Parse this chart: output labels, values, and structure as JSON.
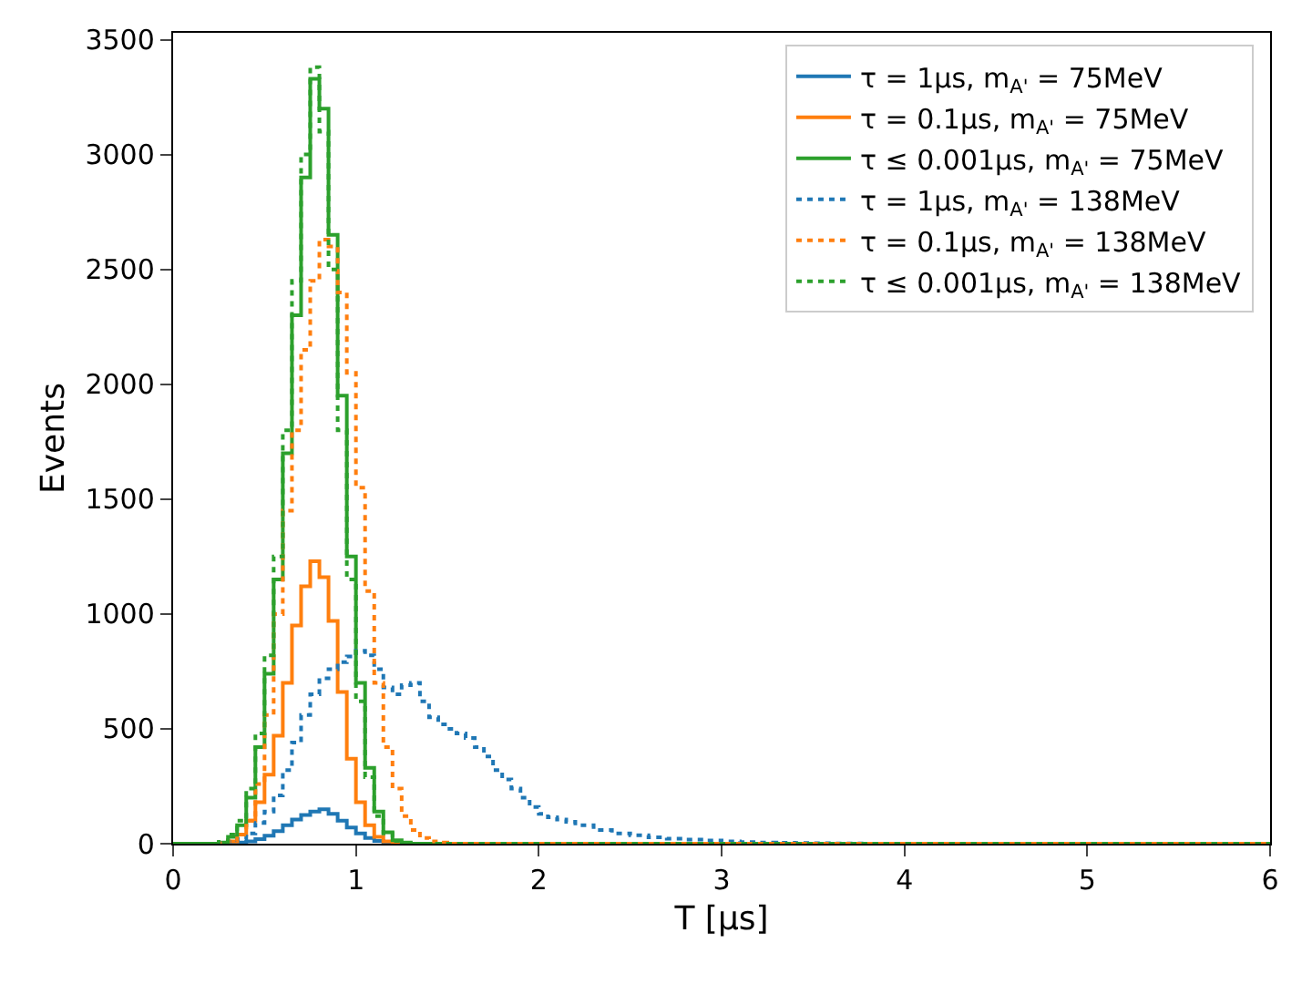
{
  "chart_data": {
    "type": "histogram",
    "xlabel": "T [μs]",
    "ylabel": "Events",
    "bins": [
      0,
      0.2,
      0.25,
      0.3,
      0.35,
      0.4,
      0.45,
      0.5,
      0.55,
      0.6,
      0.65,
      0.7,
      0.75,
      0.8,
      0.85,
      0.9,
      0.95,
      1.0,
      1.05,
      1.1,
      1.15,
      1.2,
      1.25,
      1.3,
      1.35,
      1.4,
      1.45,
      1.5,
      1.55,
      1.6,
      1.65,
      1.7,
      1.75,
      1.8,
      1.85,
      1.9,
      1.95,
      2.0,
      2.05,
      2.1,
      2.15,
      2.2,
      2.3,
      2.4,
      2.5,
      2.6,
      2.7,
      2.8,
      2.9,
      3.0,
      3.1,
      3.2,
      3.3,
      3.4,
      3.5,
      3.6,
      3.7,
      3.8,
      3.9,
      4.0,
      4.1,
      4.2,
      6
    ],
    "series": [
      {
        "name": "τ = 1μs, m$_{A'}$ = 75MeV",
        "color": "#1f77b4",
        "line_style": "solid",
        "values": [
          0,
          0,
          0,
          2,
          5,
          10,
          20,
          35,
          55,
          80,
          105,
          125,
          140,
          150,
          130,
          100,
          70,
          45,
          25,
          12,
          5,
          0,
          0,
          0,
          0,
          0,
          0,
          0,
          0,
          0,
          0,
          0,
          0,
          0,
          0,
          0,
          0,
          0,
          0,
          0,
          0,
          0,
          0,
          0,
          0,
          0,
          0,
          0,
          0,
          0,
          0,
          0,
          0,
          0,
          0,
          0,
          0,
          0,
          0,
          0,
          0,
          0
        ]
      },
      {
        "name": "τ = 0.1μs, m$_{A'}$ = 75MeV",
        "color": "#ff7f0e",
        "line_style": "solid",
        "values": [
          0,
          0,
          2,
          10,
          40,
          100,
          180,
          300,
          470,
          700,
          950,
          1120,
          1230,
          1160,
          970,
          660,
          370,
          180,
          80,
          30,
          10,
          3,
          0,
          0,
          0,
          0,
          0,
          0,
          0,
          0,
          0,
          0,
          0,
          0,
          0,
          0,
          0,
          0,
          0,
          0,
          0,
          0,
          0,
          0,
          0,
          0,
          0,
          0,
          0,
          0,
          0,
          0,
          0,
          0,
          0,
          0,
          0,
          0,
          0,
          0,
          0,
          0
        ]
      },
      {
        "name": "τ ≤ 0.001μs, m$_{A'}$ = 75MeV",
        "color": "#2ca02c",
        "line_style": "solid",
        "values": [
          0,
          0,
          5,
          30,
          80,
          200,
          420,
          740,
          1150,
          1700,
          2300,
          2900,
          3330,
          3200,
          2650,
          1950,
          1250,
          700,
          330,
          140,
          50,
          15,
          5,
          0,
          0,
          0,
          0,
          0,
          0,
          0,
          0,
          0,
          0,
          0,
          0,
          0,
          0,
          0,
          0,
          0,
          0,
          0,
          0,
          0,
          0,
          0,
          0,
          0,
          0,
          0,
          0,
          0,
          0,
          0,
          0,
          0,
          0,
          0,
          0,
          0,
          0,
          0
        ]
      },
      {
        "name": "τ = 1μs, m$_{A'}$ = 138MeV",
        "color": "#1f77b5",
        "line_style": "dotted",
        "values": [
          0,
          0,
          2,
          8,
          20,
          45,
          90,
          140,
          210,
          320,
          440,
          560,
          650,
          720,
          760,
          790,
          815,
          840,
          820,
          760,
          680,
          650,
          690,
          700,
          620,
          550,
          520,
          500,
          480,
          460,
          420,
          380,
          320,
          280,
          240,
          200,
          160,
          130,
          115,
          105,
          95,
          80,
          60,
          45,
          37,
          28,
          22,
          18,
          14,
          10,
          7,
          5,
          4,
          3,
          2,
          1,
          1,
          0,
          0,
          0,
          0,
          0
        ]
      },
      {
        "name": "τ = 0.1μs, m$_{A'}$ = 138MeV",
        "color": "#ff7f0f",
        "line_style": "dotted",
        "values": [
          0,
          0,
          2,
          10,
          40,
          100,
          260,
          560,
          1000,
          1450,
          1800,
          2150,
          2450,
          2630,
          2600,
          2400,
          2050,
          1550,
          1100,
          700,
          420,
          240,
          120,
          60,
          25,
          10,
          5,
          0,
          0,
          0,
          0,
          0,
          0,
          0,
          0,
          0,
          0,
          0,
          0,
          0,
          0,
          0,
          0,
          0,
          0,
          0,
          0,
          0,
          0,
          0,
          0,
          0,
          0,
          0,
          0,
          0,
          0,
          0,
          0,
          0,
          0,
          0
        ]
      },
      {
        "name": "τ ≤ 0.001μs, m$_{A'}$ = 138MeV",
        "color": "#2ca02d",
        "line_style": "dotted",
        "values": [
          0,
          0,
          8,
          40,
          100,
          240,
          480,
          820,
          1250,
          1800,
          2450,
          3000,
          3380,
          3100,
          2500,
          1800,
          1150,
          620,
          290,
          120,
          45,
          12,
          4,
          0,
          0,
          0,
          0,
          0,
          0,
          0,
          0,
          0,
          0,
          0,
          0,
          0,
          0,
          0,
          0,
          0,
          0,
          0,
          0,
          0,
          0,
          0,
          0,
          0,
          0,
          0,
          0,
          0,
          0,
          0,
          0,
          0,
          0,
          0,
          0,
          0,
          0,
          0
        ]
      }
    ],
    "xlim": [
      0,
      6
    ],
    "ylim": [
      0,
      3530
    ],
    "xticks": [
      0,
      1,
      2,
      3,
      4,
      5,
      6
    ],
    "yticks": [
      0,
      500,
      1000,
      1500,
      2000,
      2500,
      3000,
      3500
    ],
    "legend": "top right",
    "grid": false
  }
}
